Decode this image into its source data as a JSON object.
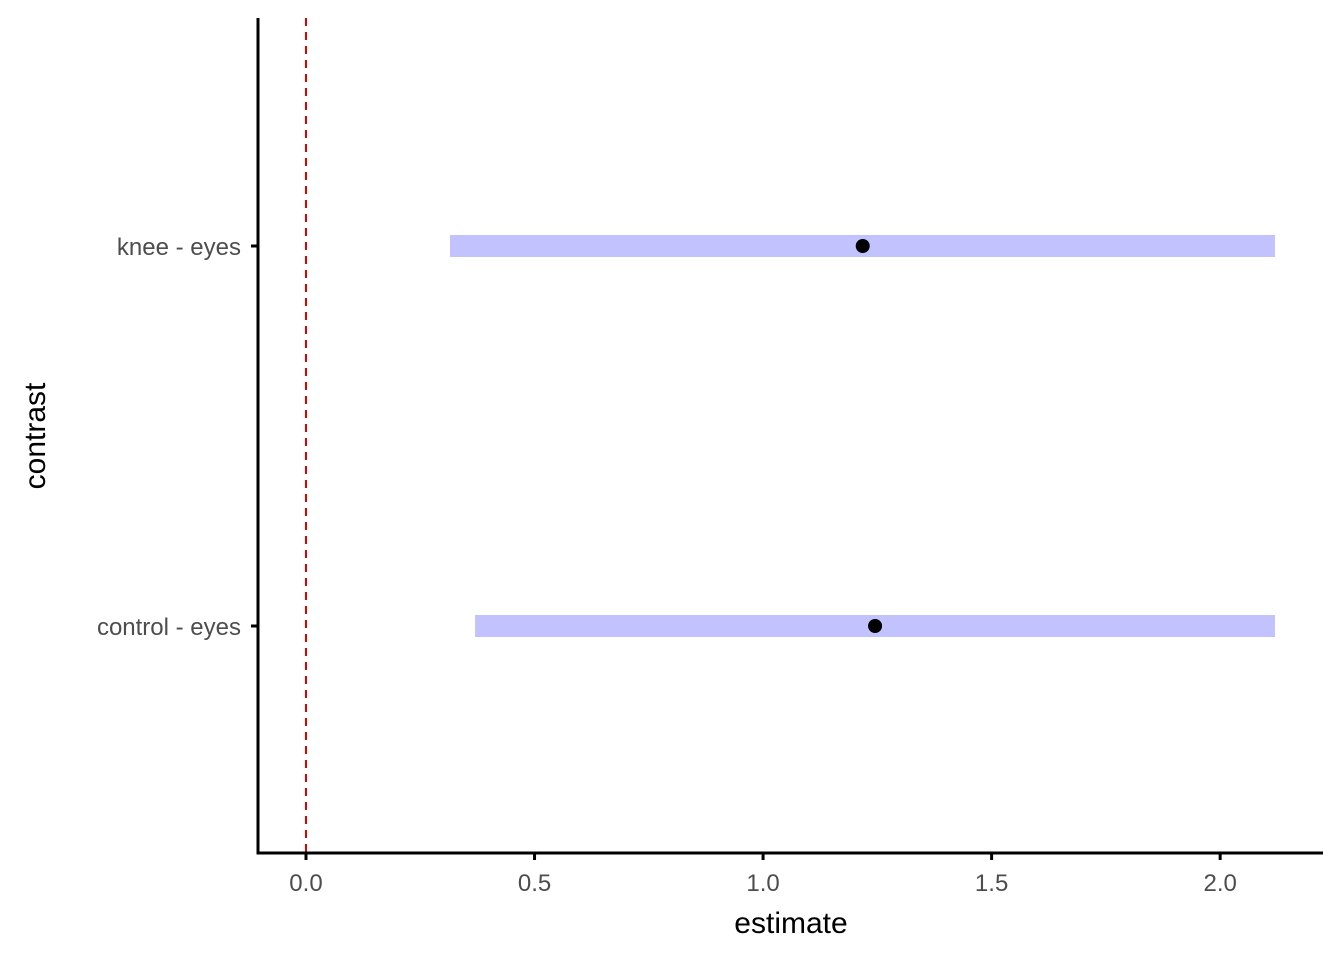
{
  "chart_data": {
    "type": "forest",
    "title": "",
    "xlabel": "estimate",
    "ylabel": "contrast",
    "xlim": [
      -0.105,
      2.225
    ],
    "x_ticks": [
      0.0,
      0.5,
      1.0,
      1.5,
      2.0
    ],
    "x_tick_labels": [
      "0.0",
      "0.5",
      "1.0",
      "1.5",
      "2.0"
    ],
    "categories": [
      "control - eyes",
      "knee - eyes"
    ],
    "estimates": [
      1.245,
      1.218
    ],
    "lower": [
      0.37,
      0.315
    ],
    "upper": [
      2.12,
      2.12
    ],
    "reference_line": 0,
    "grid": false,
    "colors": {
      "interval": "#c2c2ff",
      "point": "#000000",
      "reference": "#e00000",
      "axis": "#000000"
    }
  }
}
